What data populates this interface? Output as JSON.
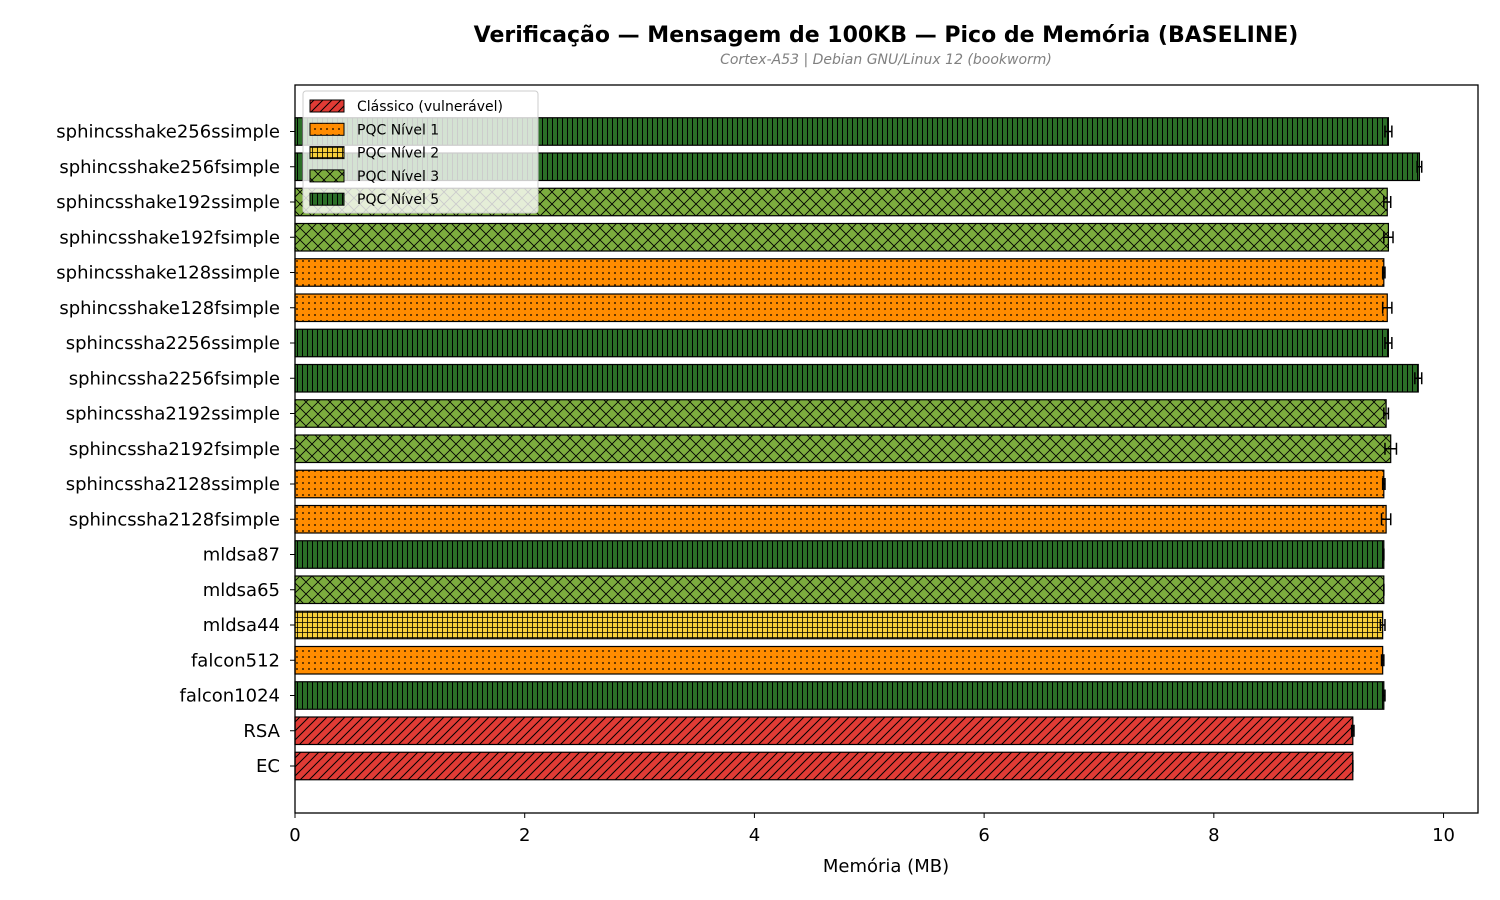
{
  "chart_data": {
    "type": "bar",
    "orientation": "horizontal",
    "title": "Verificação — Mensagem de 100KB — Pico de Memória (BASELINE)",
    "subtitle": "Cortex-A53 | Debian GNU/Linux 12 (bookworm)",
    "xlabel": "Memória (MB)",
    "ylabel": "",
    "xlim": [
      0,
      10.3
    ],
    "xticks": [
      0,
      2,
      4,
      6,
      8,
      10
    ],
    "grid": false,
    "legend_position": "top-left",
    "categories": [
      "sphincsshake256ssimple",
      "sphincsshake256fsimple",
      "sphincsshake192ssimple",
      "sphincsshake192fsimple",
      "sphincsshake128ssimple",
      "sphincsshake128fsimple",
      "sphincssha2256ssimple",
      "sphincssha2256fsimple",
      "sphincssha2192ssimple",
      "sphincssha2192fsimple",
      "sphincssha2128ssimple",
      "sphincssha2128fsimple",
      "mldsa87",
      "mldsa65",
      "mldsa44",
      "falcon512",
      "falcon1024",
      "RSA",
      "EC"
    ],
    "values": [
      9.52,
      9.79,
      9.51,
      9.52,
      9.48,
      9.51,
      9.52,
      9.78,
      9.5,
      9.54,
      9.48,
      9.5,
      9.48,
      9.48,
      9.47,
      9.47,
      9.48,
      9.21,
      9.21
    ],
    "errors": [
      0.03,
      0.02,
      0.03,
      0.04,
      0.01,
      0.04,
      0.03,
      0.03,
      0.02,
      0.05,
      0.01,
      0.04,
      0.0,
      0.0,
      0.02,
      0.01,
      0.01,
      0.01,
      0.0
    ],
    "groups": [
      4,
      4,
      3,
      3,
      1,
      1,
      4,
      4,
      3,
      3,
      1,
      1,
      4,
      3,
      2,
      1,
      4,
      0,
      0
    ],
    "legend": [
      {
        "label": "Clássico (vulnerável)",
        "color": "#e03b35",
        "pattern": "diagonal"
      },
      {
        "label": "PQC Nível 1",
        "color": "#ff8c00",
        "pattern": "dots"
      },
      {
        "label": "PQC Nível 2",
        "color": "#f7cf3a",
        "pattern": "grid"
      },
      {
        "label": "PQC Nível 3",
        "color": "#7cac3e",
        "pattern": "crosshatch"
      },
      {
        "label": "PQC Nível 5",
        "color": "#2b6e27",
        "pattern": "vertical"
      }
    ]
  }
}
